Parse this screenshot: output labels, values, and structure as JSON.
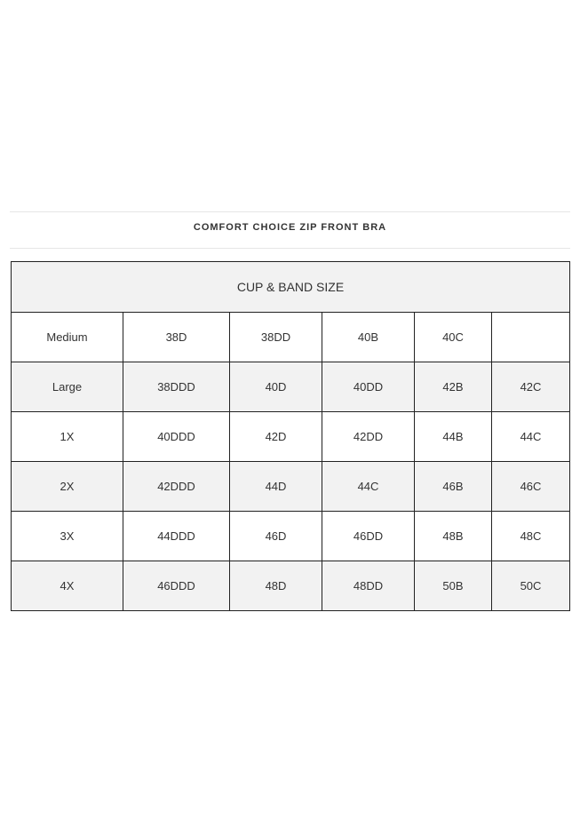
{
  "title": "COMFORT CHOICE ZIP FRONT BRA",
  "table": {
    "header": "CUP & BAND SIZE",
    "rows": [
      {
        "label": "Medium",
        "cells": [
          "38D",
          "38DD",
          "40B",
          "40C",
          ""
        ]
      },
      {
        "label": "Large",
        "cells": [
          "38DDD",
          "40D",
          "40DD",
          "42B",
          "42C"
        ]
      },
      {
        "label": "1X",
        "cells": [
          "40DDD",
          "42D",
          "42DD",
          "44B",
          "44C"
        ]
      },
      {
        "label": "2X",
        "cells": [
          "42DDD",
          "44D",
          "44C",
          "46B",
          "46C"
        ]
      },
      {
        "label": "3X",
        "cells": [
          "44DDD",
          "46D",
          "46DD",
          "48B",
          "48C"
        ]
      },
      {
        "label": "4X",
        "cells": [
          "46DDD",
          "48D",
          "48DD",
          "50B",
          "50C"
        ]
      }
    ]
  }
}
